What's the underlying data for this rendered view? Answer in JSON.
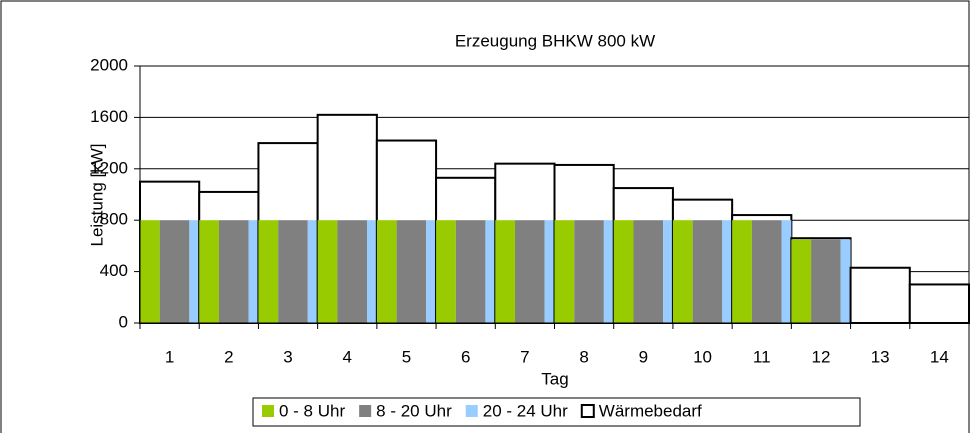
{
  "chart_data": {
    "type": "bar",
    "title": "Erzeugung BHKW 800 kW",
    "x_label": "Tag",
    "y_label": "Leistung [kW]",
    "categories": [
      "1",
      "2",
      "3",
      "4",
      "5",
      "6",
      "7",
      "8",
      "9",
      "10",
      "11",
      "12",
      "13",
      "14"
    ],
    "series": [
      {
        "name": "0 - 8 Uhr",
        "color": "#99cc00",
        "hours": 8,
        "values": [
          800,
          800,
          800,
          800,
          800,
          800,
          800,
          800,
          800,
          800,
          800,
          650,
          0,
          0
        ]
      },
      {
        "name": "8 - 20 Uhr",
        "color": "#808080",
        "hours": 12,
        "values": [
          800,
          800,
          800,
          800,
          800,
          800,
          800,
          800,
          800,
          800,
          800,
          650,
          0,
          0
        ]
      },
      {
        "name": "20 - 24 Uhr",
        "color": "#99ccff",
        "hours": 4,
        "values": [
          800,
          800,
          800,
          800,
          800,
          800,
          800,
          800,
          800,
          800,
          800,
          650,
          0,
          0
        ]
      },
      {
        "name": "Wärmebedarf",
        "color": "#ffffff",
        "values": [
          1100,
          1020,
          1400,
          1620,
          1420,
          1130,
          1240,
          1230,
          1050,
          960,
          840,
          660,
          430,
          300
        ]
      }
    ],
    "ylim": [
      0,
      2000
    ],
    "yticks": [
      0,
      400,
      800,
      1200,
      1600,
      2000
    ],
    "grid": true
  }
}
